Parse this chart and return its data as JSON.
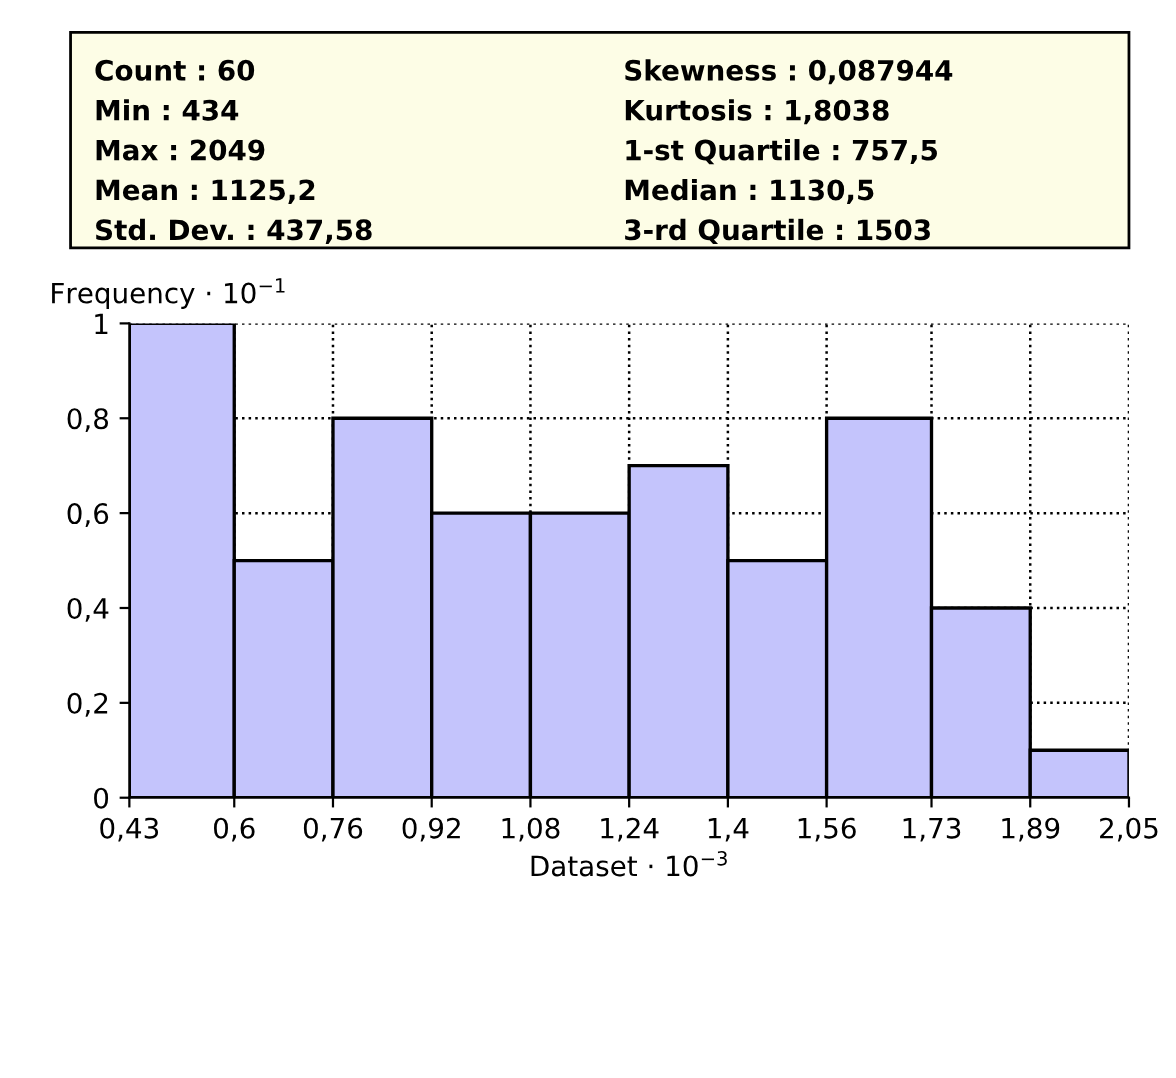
{
  "chart_data": {
    "type": "histogram",
    "ylabel": "Frequency · 10$^{−1}$",
    "xlabel": "Dataset · 10$^{−3}$",
    "bins": [
      0.43,
      0.6,
      0.76,
      0.92,
      1.08,
      1.24,
      1.4,
      1.56,
      1.73,
      1.89,
      2.05
    ],
    "values": [
      1,
      0.5,
      0.8,
      0.6,
      0.6,
      0.7,
      0.5,
      0.8,
      0.4,
      0.1
    ],
    "color": "#c4c4fc",
    "xlim": [
      0.43,
      2.05
    ],
    "xticks": [
      {
        "value": 0.43,
        "label": "0,43"
      },
      {
        "value": 0.6,
        "label": "0,6"
      },
      {
        "value": 0.76,
        "label": "0,76"
      },
      {
        "value": 0.92,
        "label": "0,92"
      },
      {
        "value": 1.08,
        "label": "1,08"
      },
      {
        "value": 1.24,
        "label": "1,24"
      },
      {
        "value": 1.4,
        "label": "1,4"
      },
      {
        "value": 1.56,
        "label": "1,56"
      },
      {
        "value": 1.73,
        "label": "1,73"
      },
      {
        "value": 1.89,
        "label": "1,89"
      },
      {
        "value": 2.05,
        "label": "2,05"
      }
    ],
    "ylim": [
      0,
      1
    ],
    "yticks": [
      0,
      {
        "value": 0.2,
        "label": "0,2"
      },
      {
        "value": 0.4,
        "label": "0,4"
      },
      {
        "value": 0.6,
        "label": "0,6"
      },
      {
        "value": 0.8,
        "label": "0,8"
      },
      1
    ],
    "grid": true,
    "annotations": [
      "Count : 60",
      "Min : 434",
      "Max : 2049",
      "Mean : 1125,2",
      "Std. Dev. : 437,58",
      "Skewness : 0,087944",
      "Kurtosis : 1,8038",
      "1-st Quartile : 757,5",
      "Median : 1130,5",
      "3-rd Quartile : 1503"
    ]
  }
}
